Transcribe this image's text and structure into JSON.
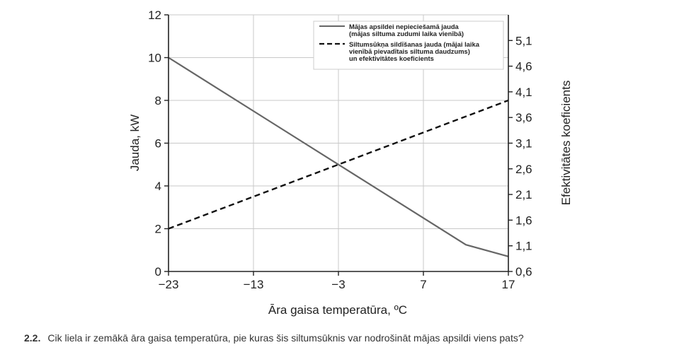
{
  "chart_data": {
    "type": "line",
    "xlabel": "Āra gaisa temperatūra, ºC",
    "ylabel": "Jauda, kW",
    "y2label": "Efektivitātes koeficients",
    "xlim": [
      -23,
      17
    ],
    "ylim": [
      0,
      12
    ],
    "y2lim": [
      0.6,
      5.6
    ],
    "x_ticks": [
      -23,
      -13,
      -3,
      7,
      17
    ],
    "x_tick_labels": [
      "−23",
      "−13",
      "−3",
      "7",
      "17"
    ],
    "y_ticks": [
      0,
      2,
      4,
      6,
      8,
      10,
      12
    ],
    "y_tick_labels": [
      "0",
      "2",
      "4",
      "6",
      "8",
      "10",
      "12"
    ],
    "y2_ticks": [
      0.6,
      1.1,
      1.6,
      2.1,
      2.6,
      3.1,
      3.6,
      4.1,
      4.6,
      5.1
    ],
    "y2_tick_labels": [
      "0,6",
      "1,1",
      "1,6",
      "2,1",
      "2,6",
      "3,1",
      "3,6",
      "4,1",
      "4,6",
      "5,1"
    ],
    "grid": true,
    "legend_position": "top-right",
    "series": [
      {
        "name": "Mājas apsildei nepieciešamā jauda (mājas siltuma zudumi laika vienībā)",
        "name_lines": [
          "Mājas apsildei nepieciešamā jauda",
          "(mājas siltuma zudumi laika vienībā)"
        ],
        "style": "solid",
        "color": "#666666",
        "x": [
          -23,
          12,
          17
        ],
        "y": [
          10,
          1.25,
          0.7
        ]
      },
      {
        "name": "Siltumsūkņa sildīšanas jauda (mājai laika vienībā pievadītais siltuma daudzums) un efektivitātes koeficients",
        "name_lines": [
          "Siltumsūkņa sildīšanas jauda (mājai laika",
          "vienībā pievadītais siltuma daudzums)",
          "un efektivitātes koeficients"
        ],
        "style": "dashed",
        "color": "#111111",
        "x": [
          -23,
          17
        ],
        "y": [
          2,
          8
        ]
      }
    ]
  },
  "question": {
    "number": "2.2.",
    "text": "Cik liela ir zemākā āra gaisa temperatūra, pie kuras šis siltumsūknis var nodrošināt mājas apsildi viens pats?"
  }
}
